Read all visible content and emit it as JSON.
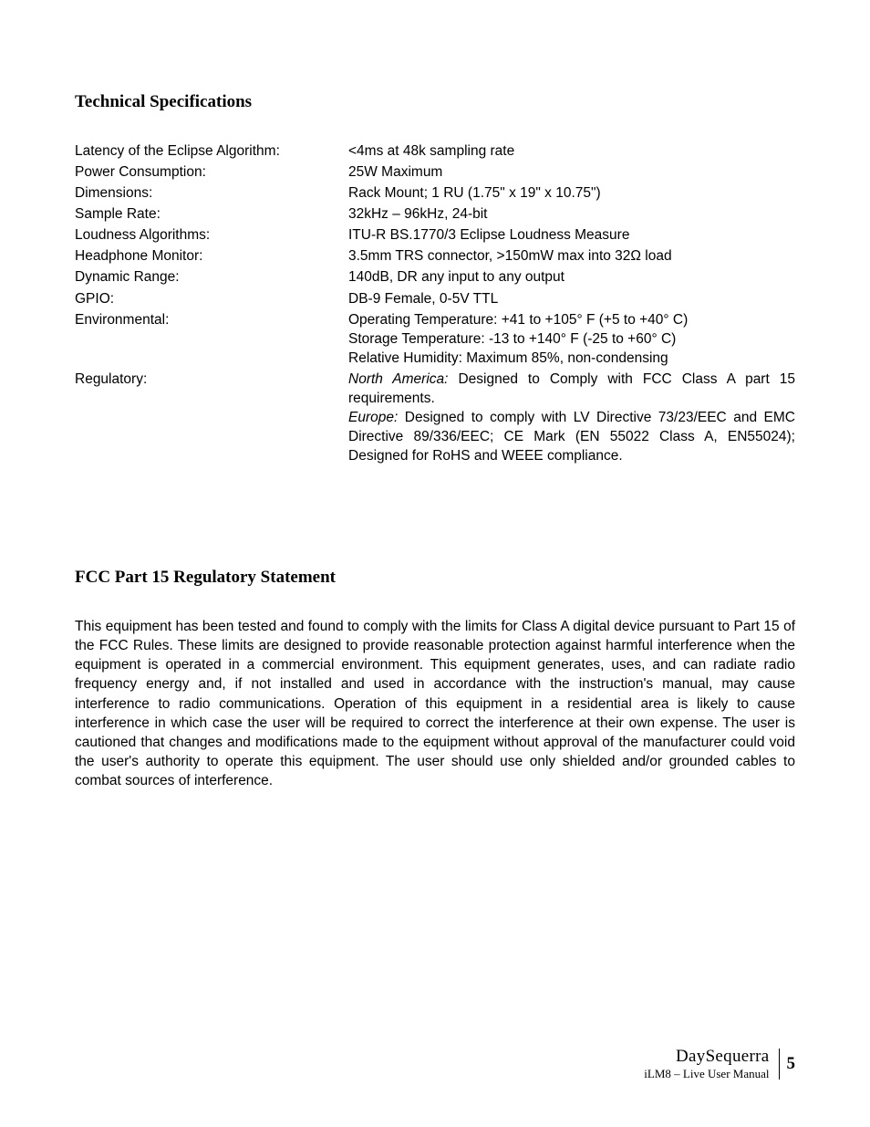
{
  "headings": {
    "tech_specs": "Technical Specifications",
    "fcc": "FCC Part 15 Regulatory Statement"
  },
  "specs": {
    "latency": {
      "label": "Latency of the Eclipse Algorithm:",
      "value": "<4ms at 48k sampling rate"
    },
    "power": {
      "label": "Power Consumption:",
      "value": "25W Maximum"
    },
    "dims": {
      "label": "Dimensions:",
      "value": "Rack Mount; 1 RU (1.75\" x 19\" x 10.75\")"
    },
    "sample": {
      "label": "Sample Rate:",
      "value": "32kHz – 96kHz, 24-bit"
    },
    "loudness": {
      "label": "Loudness Algorithms:",
      "value": "ITU-R BS.1770/3 Eclipse Loudness Measure"
    },
    "headphone": {
      "label": "Headphone Monitor:",
      "value": "3.5mm TRS connector, >150mW max into 32Ω load"
    },
    "dynamic": {
      "label": "Dynamic Range:",
      "value": "140dB, DR any input to any output"
    },
    "gpio": {
      "label": "GPIO:",
      "value": "DB-9 Female, 0-5V TTL"
    },
    "env": {
      "label": "Environmental:",
      "line1": "Operating Temperature: +41 to +105° F (+5 to +40° C)",
      "line2": "Storage Temperature: -13 to +140° F (-25 to +60° C)",
      "line3": "Relative Humidity: Maximum 85%, non-condensing"
    },
    "reg": {
      "label": "Regulatory:",
      "na_prefix": "North America:",
      "na_text": " Designed to Comply with FCC Class A part 15 requirements.",
      "eu_prefix": "Europe:",
      "eu_text": " Designed to comply with LV Directive 73/23/EEC and EMC Directive 89/336/EEC; CE Mark (EN 55022 Class A, EN55024); Designed for RoHS and WEEE compliance."
    }
  },
  "fcc_body": "This equipment has been tested and found to comply with the limits for Class A digital device pursuant to Part 15 of the FCC Rules. These limits are designed to provide reasonable protection against harmful interference when the equipment is operated in a commercial environment. This equipment generates, uses, and can radiate radio frequency energy and, if not installed and used in accordance with the instruction's manual, may cause interference to radio communications. Operation of this equipment in a residential area is likely to cause interference in which case the user will be required to correct the interference at their own expense. The user is cautioned that changes and modifications made to the equipment without approval of the manufacturer could void the user's authority to operate this equipment. The user should use only shielded and/or grounded cables to combat sources of interference.",
  "footer": {
    "brand": "DaySequerra",
    "subtitle": "iLM8 – Live User Manual",
    "page": "5"
  }
}
